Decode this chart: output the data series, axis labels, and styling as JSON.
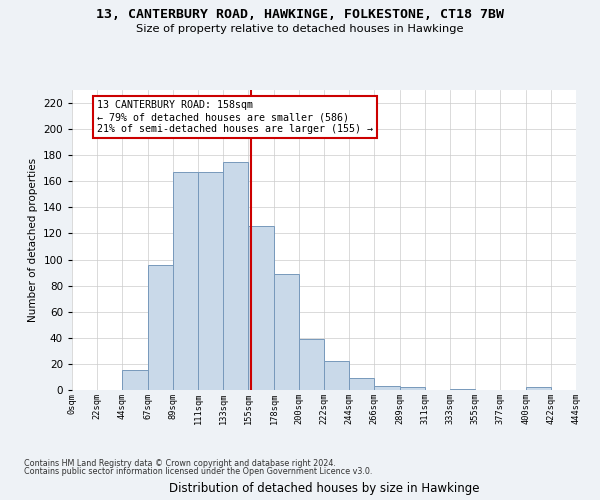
{
  "title": "13, CANTERBURY ROAD, HAWKINGE, FOLKESTONE, CT18 7BW",
  "subtitle": "Size of property relative to detached houses in Hawkinge",
  "xlabel": "Distribution of detached houses by size in Hawkinge",
  "ylabel": "Number of detached properties",
  "bin_edges": [
    0,
    22,
    44,
    67,
    89,
    111,
    133,
    155,
    178,
    200,
    222,
    244,
    266,
    289,
    311,
    333,
    355,
    377,
    400,
    422,
    444
  ],
  "bar_heights": [
    0,
    0,
    15,
    96,
    167,
    167,
    175,
    126,
    89,
    39,
    22,
    9,
    3,
    2,
    0,
    1,
    0,
    0,
    2,
    0
  ],
  "bar_color": "#c9d9e9",
  "bar_edge_color": "#7799bb",
  "property_value": 158,
  "annotation_title": "13 CANTERBURY ROAD: 158sqm",
  "annotation_line1": "← 79% of detached houses are smaller (586)",
  "annotation_line2": "21% of semi-detached houses are larger (155) →",
  "vline_color": "#cc0000",
  "ylim": [
    0,
    230
  ],
  "yticks": [
    0,
    20,
    40,
    60,
    80,
    100,
    120,
    140,
    160,
    180,
    200,
    220
  ],
  "tick_labels": [
    "0sqm",
    "22sqm",
    "44sqm",
    "67sqm",
    "89sqm",
    "111sqm",
    "133sqm",
    "155sqm",
    "178sqm",
    "200sqm",
    "222sqm",
    "244sqm",
    "266sqm",
    "289sqm",
    "311sqm",
    "333sqm",
    "355sqm",
    "377sqm",
    "400sqm",
    "422sqm",
    "444sqm"
  ],
  "footer_line1": "Contains HM Land Registry data © Crown copyright and database right 2024.",
  "footer_line2": "Contains public sector information licensed under the Open Government Licence v3.0.",
  "background_color": "#eef2f6",
  "plot_background": "#ffffff",
  "grid_color": "#cccccc"
}
